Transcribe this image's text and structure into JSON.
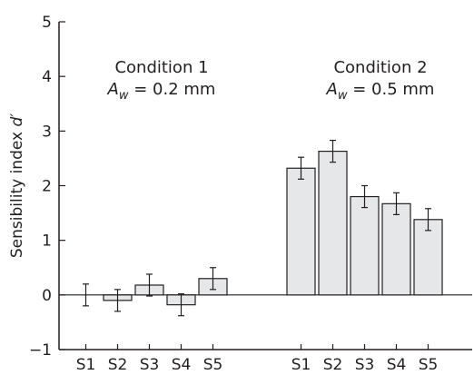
{
  "chart_data": {
    "type": "bar",
    "ylabel_main": "Sensibility index ",
    "ylabel_var": "d′",
    "ylim": [
      -1,
      5
    ],
    "yticks": [
      -1,
      0,
      1,
      2,
      3,
      4,
      5
    ],
    "ytick_labels": [
      "−1",
      "0",
      "1",
      "2",
      "3",
      "4",
      "5"
    ],
    "grid": false,
    "groups": [
      {
        "title": "Condition 1",
        "param_symbol": "A",
        "param_sub": "w",
        "param_value": " = 0.2 mm",
        "categories": [
          "S1",
          "S2",
          "S3",
          "S4",
          "S5"
        ],
        "values": [
          0.0,
          -0.1,
          0.18,
          -0.18,
          0.3
        ],
        "errors": [
          0.2,
          0.2,
          0.2,
          0.2,
          0.2
        ]
      },
      {
        "title": "Condition 2",
        "param_symbol": "A",
        "param_sub": "w",
        "param_value": " = 0.5 mm",
        "categories": [
          "S1",
          "S2",
          "S3",
          "S4",
          "S5"
        ],
        "values": [
          2.32,
          2.63,
          1.8,
          1.67,
          1.38
        ],
        "errors": [
          0.2,
          0.2,
          0.2,
          0.2,
          0.2
        ]
      }
    ],
    "colors": {
      "bar_fill": "#e6e7e8",
      "stroke": "#231f20"
    }
  }
}
